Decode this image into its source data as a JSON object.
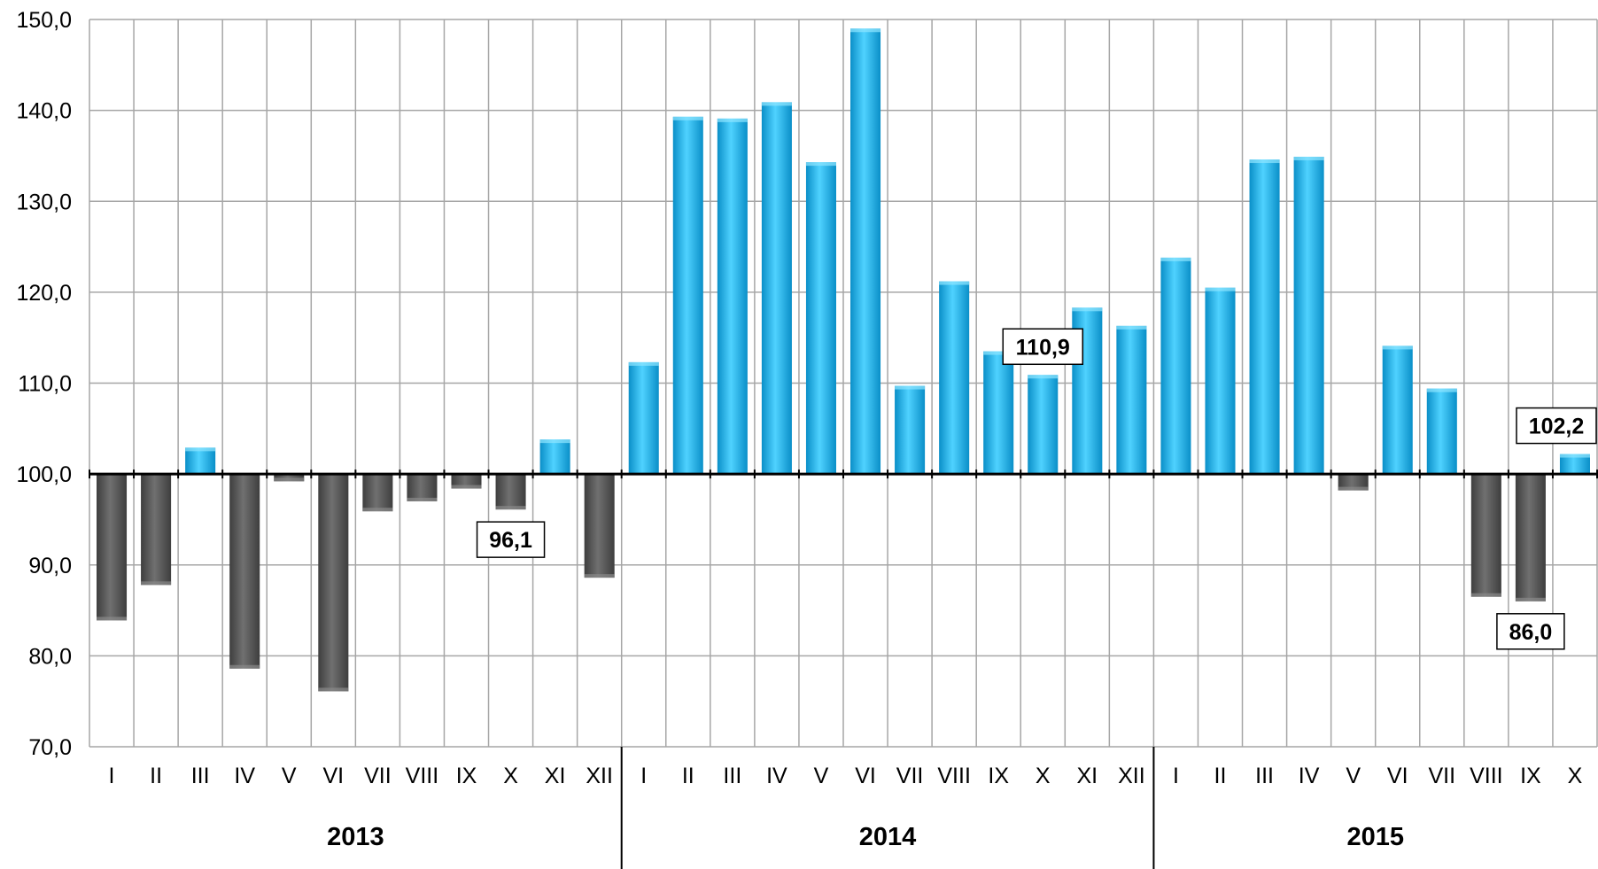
{
  "chart_data": {
    "type": "bar",
    "baseline": 100,
    "ylim": [
      70,
      150
    ],
    "grid": true,
    "y_ticks": [
      "70,0",
      "80,0",
      "90,0",
      "100,0",
      "110,0",
      "120,0",
      "130,0",
      "140,0",
      "150,0"
    ],
    "categories": [
      "I",
      "II",
      "III",
      "IV",
      "V",
      "VI",
      "VII",
      "VIII",
      "IX",
      "X",
      "XI",
      "XII",
      "I",
      "II",
      "III",
      "IV",
      "V",
      "VI",
      "VII",
      "VIII",
      "IX",
      "X",
      "XI",
      "XII",
      "I",
      "II",
      "III",
      "IV",
      "V",
      "VI",
      "VII",
      "VIII",
      "IX",
      "X"
    ],
    "groups": [
      {
        "label": "2013",
        "count": 12
      },
      {
        "label": "2014",
        "count": 12
      },
      {
        "label": "2015",
        "count": 10
      }
    ],
    "values": [
      83.9,
      87.8,
      102.9,
      78.6,
      99.2,
      76.1,
      95.9,
      97.0,
      98.4,
      96.1,
      103.8,
      88.6,
      112.3,
      139.3,
      139.1,
      140.9,
      134.3,
      149.0,
      109.7,
      121.2,
      113.5,
      110.9,
      118.3,
      116.3,
      123.8,
      120.5,
      134.6,
      134.9,
      98.2,
      114.1,
      109.4,
      86.5,
      86.0,
      102.2
    ],
    "data_labels": [
      {
        "index": 9,
        "text": "96,1"
      },
      {
        "index": 21,
        "text": "110,9"
      },
      {
        "index": 32,
        "text": "86,0"
      },
      {
        "index": 33,
        "text": "102,2"
      }
    ],
    "colors": {
      "above": "#1CB4EC",
      "below": "#555555",
      "grid": "#A6A6A6",
      "axis": "#000000"
    }
  }
}
